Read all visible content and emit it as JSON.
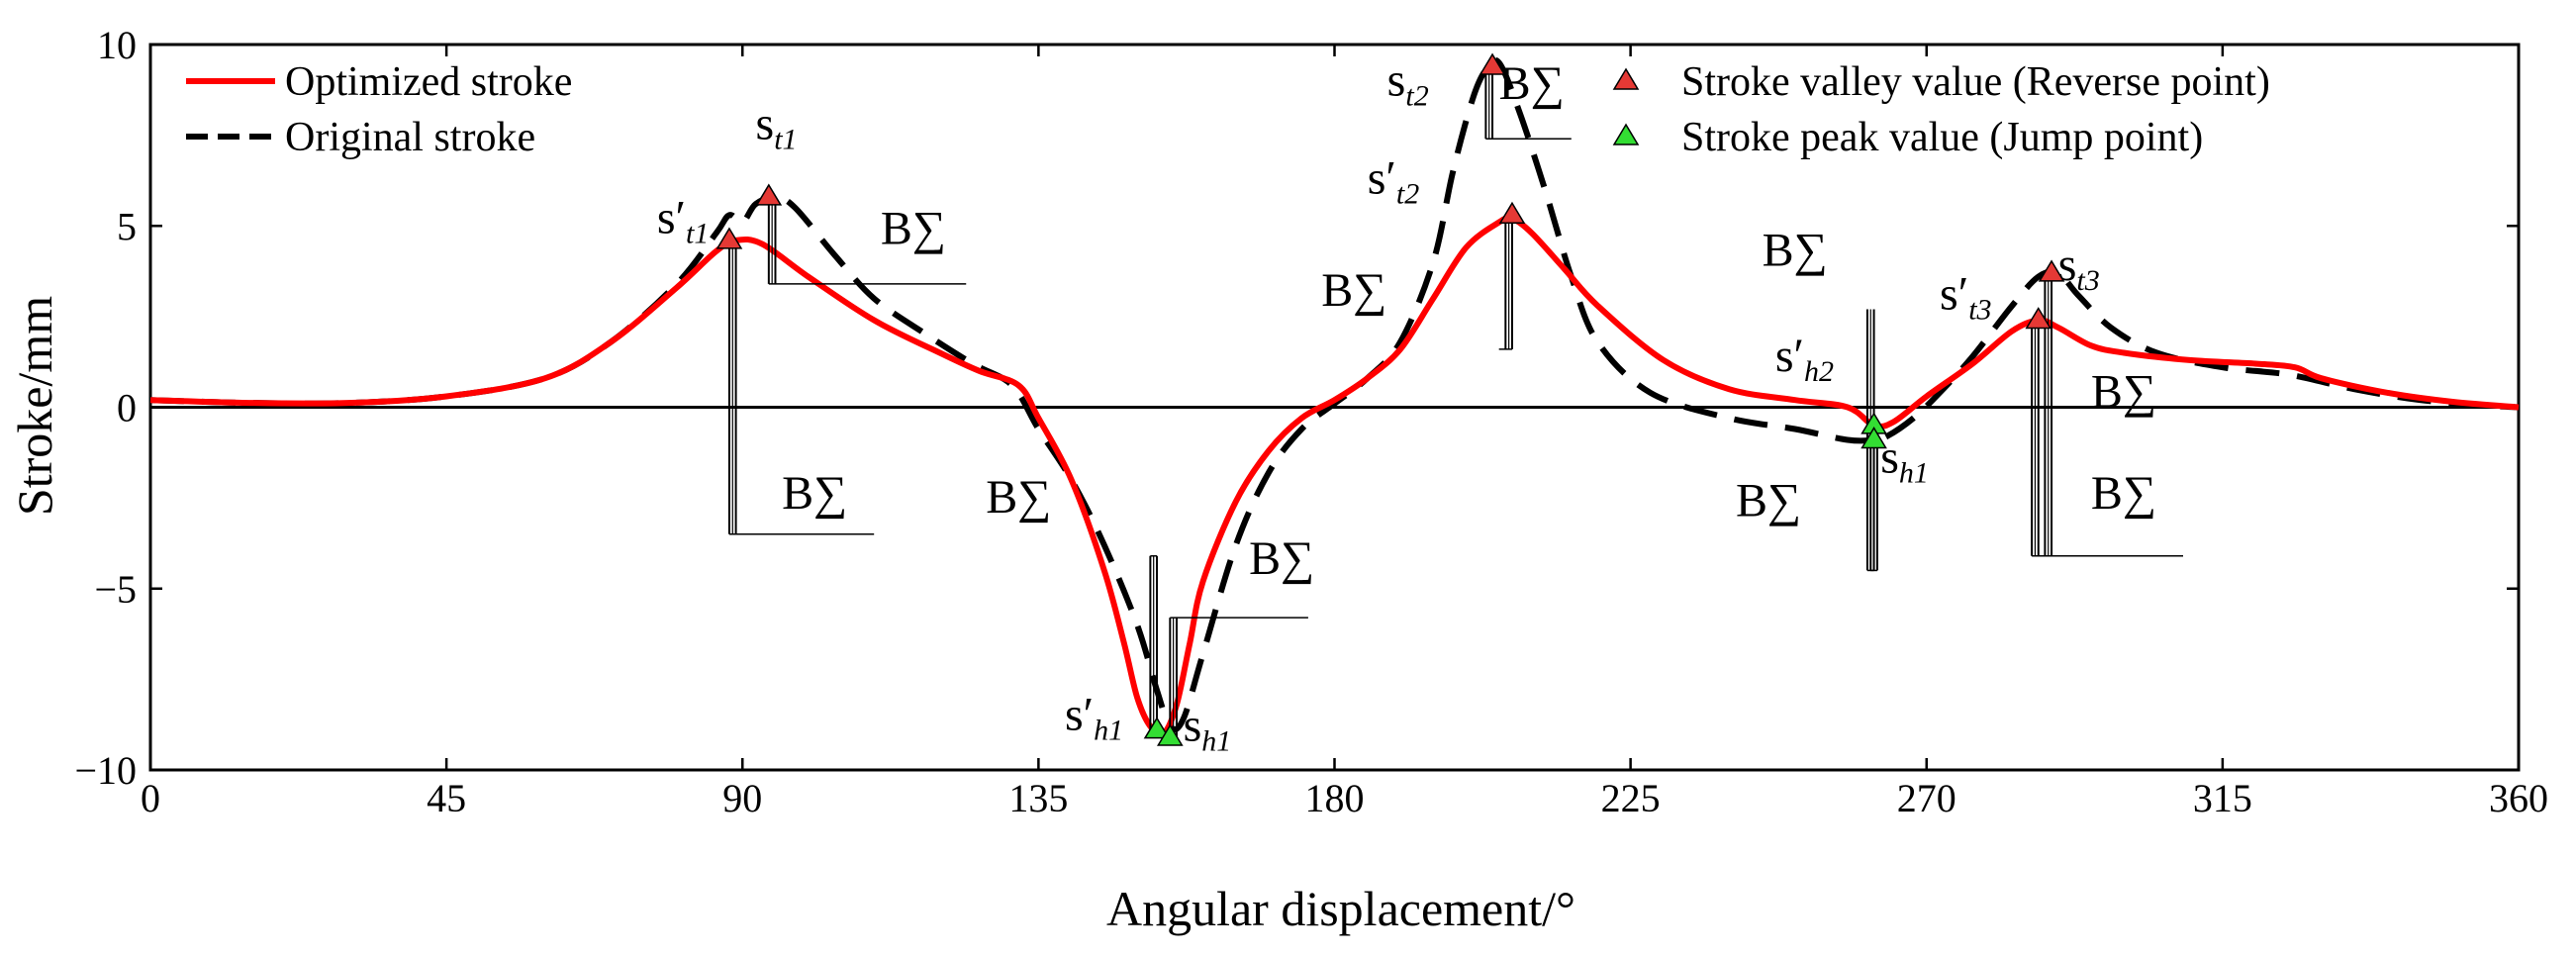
{
  "chart_data": {
    "type": "line",
    "xlabel": "Angular displacement/°",
    "ylabel": "Stroke/mm",
    "xlim": [
      0,
      360
    ],
    "ylim": [
      -10,
      10
    ],
    "x_ticks": [
      "0",
      "45",
      "90",
      "135",
      "180",
      "225",
      "270",
      "315",
      "360"
    ],
    "y_ticks": [
      "−10",
      "−5",
      "0",
      "5",
      "10"
    ],
    "x_tick_values": [
      0,
      45,
      90,
      135,
      180,
      225,
      270,
      315,
      360
    ],
    "y_tick_values": [
      -10,
      -5,
      0,
      5,
      10
    ],
    "grid": false,
    "zero_line": true,
    "legend_position": "top",
    "legend": [
      {
        "name": "Optimized stroke",
        "style": "solid",
        "color": "#ff0000"
      },
      {
        "name": "Original stroke",
        "style": "dashed",
        "color": "#000000"
      },
      {
        "name": "Stroke valley value (Reverse point)",
        "marker": "triangle",
        "color": "#e53935"
      },
      {
        "name": "Stroke peak value (Jump point)",
        "marker": "triangle",
        "color": "#33dd33"
      }
    ],
    "series": [
      {
        "name": "Optimized stroke",
        "color": "#ff0000",
        "style": "solid",
        "points": [
          [
            0,
            0.2
          ],
          [
            15,
            0.12
          ],
          [
            30,
            0.12
          ],
          [
            45,
            0.3
          ],
          [
            60,
            0.8
          ],
          [
            70,
            1.8
          ],
          [
            80,
            3.3
          ],
          [
            86,
            4.3
          ],
          [
            89,
            4.6
          ],
          [
            93,
            4.5
          ],
          [
            100,
            3.6
          ],
          [
            110,
            2.4
          ],
          [
            120,
            1.5
          ],
          [
            126,
            1.0
          ],
          [
            132,
            0.6
          ],
          [
            135,
            -0.3
          ],
          [
            140,
            -2.0
          ],
          [
            145,
            -4.5
          ],
          [
            148,
            -6.5
          ],
          [
            150,
            -8.0
          ],
          [
            152,
            -8.8
          ],
          [
            154,
            -9.0
          ],
          [
            156,
            -8.2
          ],
          [
            158,
            -6.5
          ],
          [
            160,
            -4.8
          ],
          [
            165,
            -2.6
          ],
          [
            170,
            -1.2
          ],
          [
            175,
            -0.3
          ],
          [
            180,
            0.2
          ],
          [
            185,
            0.8
          ],
          [
            190,
            1.6
          ],
          [
            195,
            3.0
          ],
          [
            200,
            4.4
          ],
          [
            205,
            5.1
          ],
          [
            207,
            5.2
          ],
          [
            210,
            4.8
          ],
          [
            215,
            3.8
          ],
          [
            220,
            2.8
          ],
          [
            230,
            1.3
          ],
          [
            240,
            0.5
          ],
          [
            250,
            0.2
          ],
          [
            258,
            0.0
          ],
          [
            262,
            -0.5
          ],
          [
            265,
            -0.4
          ],
          [
            270,
            0.3
          ],
          [
            277,
            1.2
          ],
          [
            283,
            2.1
          ],
          [
            287,
            2.4
          ],
          [
            290,
            2.2
          ],
          [
            295,
            1.7
          ],
          [
            300,
            1.5
          ],
          [
            310,
            1.3
          ],
          [
            320,
            1.2
          ],
          [
            326,
            1.1
          ],
          [
            330,
            0.8
          ],
          [
            340,
            0.4
          ],
          [
            350,
            0.15
          ],
          [
            360,
            0.0
          ]
        ]
      },
      {
        "name": "Original stroke",
        "color": "#000000",
        "style": "dashed",
        "points": [
          [
            0,
            0.2
          ],
          [
            15,
            0.12
          ],
          [
            30,
            0.12
          ],
          [
            45,
            0.3
          ],
          [
            60,
            0.8
          ],
          [
            70,
            1.8
          ],
          [
            80,
            3.4
          ],
          [
            86,
            4.8
          ],
          [
            88,
            5.3
          ],
          [
            90,
            5.1
          ],
          [
            92,
            5.6
          ],
          [
            95,
            5.8
          ],
          [
            98,
            5.5
          ],
          [
            104,
            4.2
          ],
          [
            110,
            3.0
          ],
          [
            118,
            2.0
          ],
          [
            125,
            1.2
          ],
          [
            131,
            0.6
          ],
          [
            135,
            -0.6
          ],
          [
            140,
            -2.0
          ],
          [
            145,
            -3.8
          ],
          [
            150,
            -6.0
          ],
          [
            153,
            -7.8
          ],
          [
            155,
            -8.8
          ],
          [
            157,
            -8.6
          ],
          [
            160,
            -6.8
          ],
          [
            165,
            -3.8
          ],
          [
            170,
            -1.8
          ],
          [
            175,
            -0.6
          ],
          [
            180,
            0.1
          ],
          [
            185,
            0.8
          ],
          [
            190,
            1.8
          ],
          [
            195,
            4.0
          ],
          [
            198,
            6.5
          ],
          [
            201,
            8.5
          ],
          [
            203,
            9.3
          ],
          [
            205,
            9.5
          ],
          [
            208,
            8.2
          ],
          [
            212,
            6.0
          ],
          [
            216,
            3.6
          ],
          [
            220,
            1.8
          ],
          [
            228,
            0.4
          ],
          [
            240,
            -0.3
          ],
          [
            250,
            -0.6
          ],
          [
            258,
            -0.9
          ],
          [
            262,
            -0.9
          ],
          [
            264,
            -0.8
          ],
          [
            268,
            -0.3
          ],
          [
            272,
            0.4
          ],
          [
            277,
            1.4
          ],
          [
            283,
            2.8
          ],
          [
            287,
            3.6
          ],
          [
            290,
            3.7
          ],
          [
            293,
            3.1
          ],
          [
            298,
            2.2
          ],
          [
            305,
            1.5
          ],
          [
            315,
            1.1
          ],
          [
            325,
            0.9
          ],
          [
            335,
            0.5
          ],
          [
            345,
            0.2
          ],
          [
            355,
            0.05
          ],
          [
            360,
            0.0
          ]
        ]
      }
    ],
    "markers": [
      {
        "kind": "valley",
        "x": 88,
        "y": 4.6
      },
      {
        "kind": "valley",
        "x": 94,
        "y": 5.8
      },
      {
        "kind": "valley",
        "x": 204,
        "y": 9.4
      },
      {
        "kind": "valley",
        "x": 207,
        "y": 5.3
      },
      {
        "kind": "valley",
        "x": 287,
        "y": 2.4
      },
      {
        "kind": "valley",
        "x": 289,
        "y": 3.7
      },
      {
        "kind": "peak",
        "x": 153,
        "y": -8.9
      },
      {
        "kind": "peak",
        "x": 155,
        "y": -9.1
      },
      {
        "kind": "peak",
        "x": 262,
        "y": -0.5
      },
      {
        "kind": "peak",
        "x": 262,
        "y": -0.9
      }
    ],
    "point_labels": [
      {
        "main": "s′",
        "sub": "t1",
        "x": 77,
        "y": 4.8
      },
      {
        "main": "s",
        "sub": "t1",
        "x": 92,
        "y": 7.4
      },
      {
        "main": "s",
        "sub": "t2",
        "x": 188,
        "y": 8.6
      },
      {
        "main": "s′",
        "sub": "t2",
        "x": 185,
        "y": 5.9
      },
      {
        "main": "s′",
        "sub": "t3",
        "x": 272,
        "y": 2.7
      },
      {
        "main": "s",
        "sub": "t3",
        "x": 290,
        "y": 3.5
      },
      {
        "main": "s′",
        "sub": "h1",
        "x": 139,
        "y": -8.9
      },
      {
        "main": "s",
        "sub": "h1",
        "x": 157,
        "y": -9.2
      },
      {
        "main": "s′",
        "sub": "h2",
        "x": 247,
        "y": 1.0
      },
      {
        "main": "s",
        "sub": "h1",
        "x": 263,
        "y": -1.8
      }
    ],
    "bandwidth_label": "B∑",
    "bandwidth_annotations": [
      {
        "x": [
          88,
          89
        ],
        "y_top": 4.6,
        "y_bottom": -3.5,
        "label_x": 96,
        "label_y": -2.8,
        "line_to": 110
      },
      {
        "x": [
          94,
          95
        ],
        "y_top": 5.8,
        "y_bottom": 3.4,
        "label_x": 111,
        "label_y": 4.5,
        "line_to": 124
      },
      {
        "x": [
          152,
          153
        ],
        "y_top": -8.9,
        "y_bottom": -4.1,
        "label_x": 127,
        "label_y": -2.9,
        "line_to": 152
      },
      {
        "x": [
          155,
          156
        ],
        "y_top": -9.1,
        "y_bottom": -5.8,
        "label_x": 167,
        "label_y": -4.6,
        "line_to": 176
      },
      {
        "x": [
          203,
          204
        ],
        "y_top": 9.4,
        "y_bottom": 7.4,
        "label_x": 205,
        "label_y": 8.5,
        "line_to": 216
      },
      {
        "x": [
          206,
          207
        ],
        "y_top": 5.3,
        "y_bottom": 1.6,
        "label_x": 178,
        "label_y": 2.8,
        "line_to": 205
      },
      {
        "x": [
          261,
          262
        ],
        "y_top": 2.7,
        "y_bottom": -4.5,
        "label_x": 245,
        "label_y": 3.9,
        "line_to": 262
      },
      {
        "x": [
          261.5,
          262.5
        ],
        "y_top": -0.5,
        "y_bottom": -4.5,
        "label_x": 241,
        "label_y": -3.0,
        "line_to": 262
      },
      {
        "x": [
          286,
          287
        ],
        "y_top": 2.4,
        "y_bottom": -4.1,
        "label_x": 295,
        "label_y": 0.0,
        "line_to": 309
      },
      {
        "x": [
          288,
          289
        ],
        "y_top": 3.7,
        "y_bottom": -4.1,
        "label_x": 295,
        "label_y": -2.8,
        "line_to": 309
      }
    ]
  }
}
